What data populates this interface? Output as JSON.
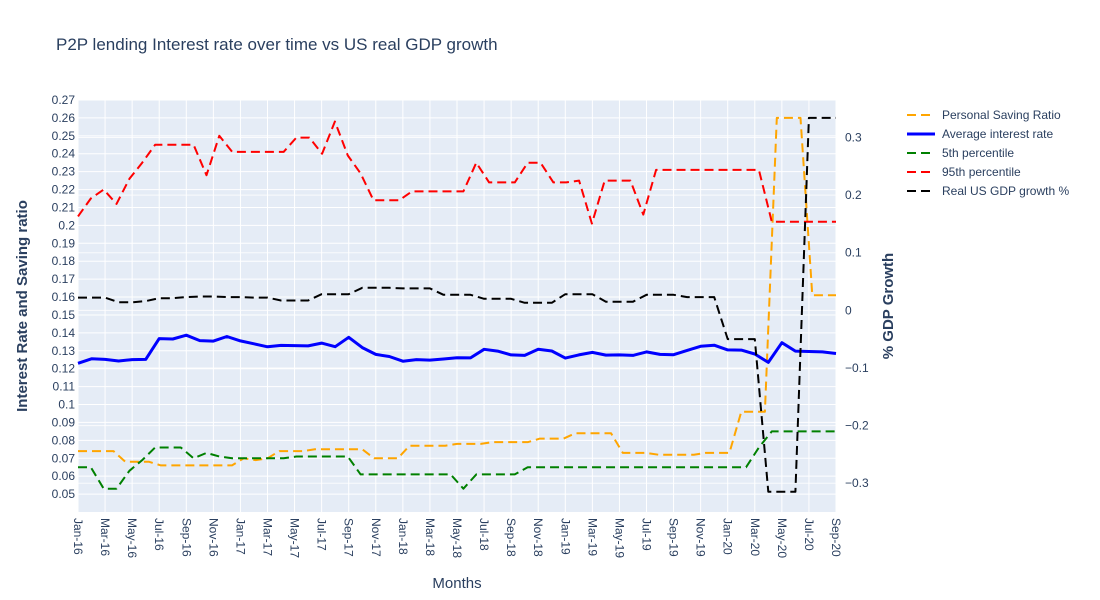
{
  "chart_data": {
    "type": "line",
    "title": "P2P lending Interest rate over time vs US real GDP growth",
    "xlabel": "Months",
    "ylabel_left": "Interest Rate and Saving ratio",
    "ylabel_right": "% GDP Growth",
    "x_tick_labels": [
      "Jan-16",
      "Mar-16",
      "May-16",
      "Jul-16",
      "Sep-16",
      "Nov-16",
      "Jan-17",
      "Mar-17",
      "May-17",
      "Jul-17",
      "Sep-17",
      "Nov-17",
      "Jan-18",
      "Mar-18",
      "May-18",
      "Jul-18",
      "Sep-18",
      "Nov-18",
      "Jan-19",
      "Mar-19",
      "May-19",
      "Jul-19",
      "Sep-19",
      "Nov-19",
      "Jan-20",
      "Mar-20",
      "May-20",
      "Jul-20",
      "Sep-20"
    ],
    "y_left_ticks": [
      0.05,
      0.06,
      0.07,
      0.08,
      0.09,
      0.1,
      0.11,
      0.12,
      0.13,
      0.14,
      0.15,
      0.16,
      0.17,
      0.18,
      0.19,
      0.2,
      0.21,
      0.22,
      0.23,
      0.24,
      0.25,
      0.26,
      0.27
    ],
    "y_left_tick_labels": [
      "0.05",
      "0.06",
      "0.07",
      "0.08",
      "0.09",
      "0.1",
      "0.11",
      "0.12",
      "0.13",
      "0.14",
      "0.15",
      "0.16",
      "0.17",
      "0.18",
      "0.19",
      "0.2",
      "0.21",
      "0.22",
      "0.23",
      "0.24",
      "0.25",
      "0.26",
      "0.27"
    ],
    "y_left_range": [
      0.04,
      0.27
    ],
    "y_right_ticks": [
      -0.3,
      -0.2,
      -0.1,
      0,
      0.1,
      0.2,
      0.3
    ],
    "y_right_tick_labels": [
      "−0.3",
      "−0.2",
      "−0.1",
      "0",
      "0.1",
      "0.2",
      "0.3"
    ],
    "y_right_range": [
      -0.35,
      0.365
    ],
    "grid": true,
    "legend_position": "right",
    "series": [
      {
        "name": "Personal Saving Ratio",
        "axis": "left",
        "color": "#FFA500",
        "dash": "dash",
        "width": 2,
        "values": [
          0.074,
          0.074,
          0.074,
          0.074,
          0.068,
          0.068,
          0.068,
          0.066,
          0.066,
          0.066,
          0.066,
          0.066,
          0.066,
          0.066,
          0.07,
          0.069,
          0.07,
          0.074,
          0.074,
          0.074,
          0.075,
          0.075,
          0.075,
          0.075,
          0.075,
          0.07,
          0.07,
          0.07,
          0.077,
          0.077,
          0.077,
          0.077,
          0.078,
          0.078,
          0.078,
          0.079,
          0.079,
          0.079,
          0.079,
          0.081,
          0.081,
          0.081,
          0.084,
          0.084,
          0.084,
          0.084,
          0.073,
          0.073,
          0.073,
          0.072,
          0.072,
          0.072,
          0.072,
          0.073,
          0.073,
          0.073,
          0.096,
          0.096,
          0.096,
          0.26,
          0.26,
          0.26,
          0.161,
          0.161,
          0.161
        ]
      },
      {
        "name": "Average interest rate",
        "axis": "left",
        "color": "#0000FF",
        "dash": "solid",
        "width": 3,
        "values": [
          0.123,
          0.1255,
          0.1252,
          0.1243,
          0.1251,
          0.1252,
          0.1368,
          0.1366,
          0.1387,
          0.1357,
          0.1354,
          0.138,
          0.1355,
          0.1339,
          0.1322,
          0.133,
          0.1329,
          0.1327,
          0.1343,
          0.1323,
          0.1375,
          0.1318,
          0.128,
          0.1268,
          0.1242,
          0.1251,
          0.1248,
          0.1254,
          0.1261,
          0.126,
          0.1308,
          0.1298,
          0.1277,
          0.1274,
          0.1308,
          0.1299,
          0.1259,
          0.1277,
          0.1291,
          0.1276,
          0.1277,
          0.1274,
          0.1294,
          0.128,
          0.1278,
          0.1302,
          0.1325,
          0.1331,
          0.1305,
          0.1304,
          0.1282,
          0.1235,
          0.1345,
          0.1298,
          0.1296,
          0.1294,
          0.1285
        ]
      },
      {
        "name": "5th percentile",
        "axis": "left",
        "color": "#008000",
        "dash": "dash",
        "width": 2,
        "values": [
          0.065,
          0.065,
          0.053,
          0.053,
          0.063,
          0.069,
          0.076,
          0.076,
          0.076,
          0.07,
          0.073,
          0.071,
          0.07,
          0.07,
          0.07,
          0.07,
          0.07,
          0.071,
          0.071,
          0.071,
          0.071,
          0.071,
          0.061,
          0.061,
          0.061,
          0.061,
          0.061,
          0.061,
          0.061,
          0.061,
          0.053,
          0.061,
          0.061,
          0.061,
          0.061,
          0.065,
          0.065,
          0.065,
          0.065,
          0.065,
          0.065,
          0.065,
          0.065,
          0.065,
          0.065,
          0.065,
          0.065,
          0.065,
          0.065,
          0.065,
          0.065,
          0.065,
          0.065,
          0.076,
          0.085,
          0.085,
          0.085,
          0.085,
          0.085,
          0.085
        ]
      },
      {
        "name": "95th percentile",
        "axis": "left",
        "color": "#FF0000",
        "dash": "dash",
        "width": 2,
        "values": [
          0.205,
          0.215,
          0.22,
          0.212,
          0.226,
          0.235,
          0.245,
          0.245,
          0.245,
          0.245,
          0.228,
          0.25,
          0.241,
          0.241,
          0.241,
          0.241,
          0.241,
          0.249,
          0.249,
          0.24,
          0.258,
          0.239,
          0.229,
          0.214,
          0.214,
          0.214,
          0.219,
          0.219,
          0.219,
          0.219,
          0.219,
          0.235,
          0.224,
          0.224,
          0.224,
          0.235,
          0.235,
          0.224,
          0.224,
          0.225,
          0.201,
          0.225,
          0.225,
          0.225,
          0.206,
          0.231,
          0.231,
          0.231,
          0.231,
          0.231,
          0.231,
          0.231,
          0.231,
          0.231,
          0.202,
          0.202,
          0.202,
          0.202,
          0.202,
          0.202
        ]
      },
      {
        "name": "Real US GDP growth %",
        "axis": "right",
        "color": "#000000",
        "dash": "dash",
        "width": 2,
        "values": [
          0.022,
          0.022,
          0.022,
          0.014,
          0.014,
          0.016,
          0.021,
          0.021,
          0.023,
          0.024,
          0.024,
          0.023,
          0.023,
          0.022,
          0.022,
          0.017,
          0.017,
          0.017,
          0.028,
          0.028,
          0.028,
          0.039,
          0.039,
          0.039,
          0.038,
          0.038,
          0.038,
          0.027,
          0.027,
          0.027,
          0.02,
          0.02,
          0.02,
          0.013,
          0.013,
          0.013,
          0.028,
          0.028,
          0.028,
          0.015,
          0.015,
          0.015,
          0.027,
          0.027,
          0.027,
          0.023,
          0.023,
          0.023,
          -0.05,
          -0.05,
          -0.05,
          -0.315,
          -0.315,
          -0.315,
          0.334,
          0.334,
          0.334
        ]
      }
    ]
  }
}
